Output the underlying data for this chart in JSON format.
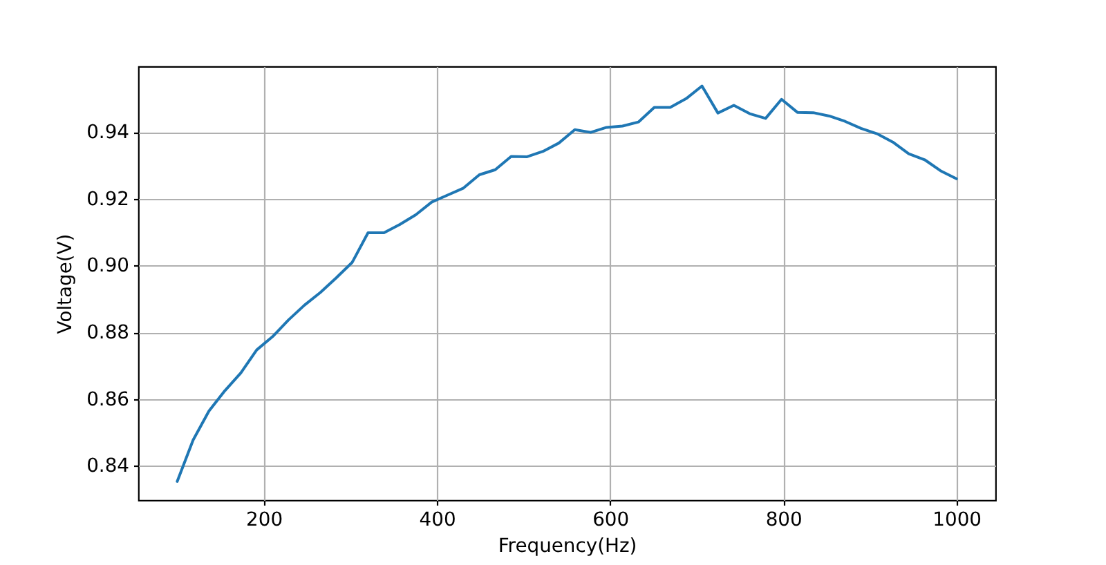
{
  "chart_data": {
    "type": "line",
    "xlabel": "Frequency(Hz)",
    "ylabel": "Voltage(V)",
    "color": "#1f77b4",
    "x": [
      100,
      118.4,
      136.7,
      155.1,
      173.5,
      191.8,
      210.2,
      228.6,
      246.9,
      265.3,
      283.7,
      302.0,
      320.4,
      338.8,
      357.1,
      375.5,
      393.9,
      412.2,
      430.6,
      449.0,
      467.3,
      485.7,
      504.1,
      522.4,
      540.8,
      559.2,
      577.6,
      595.9,
      614.3,
      632.7,
      651.0,
      669.4,
      687.8,
      706.1,
      724.5,
      742.9,
      761.2,
      779.6,
      798.0,
      816.3,
      834.7,
      853.1,
      871.4,
      889.8,
      908.2,
      926.5,
      944.9,
      963.3,
      981.6,
      1000
    ],
    "values": [
      0.8353,
      0.8477,
      0.8564,
      0.8625,
      0.8678,
      0.8747,
      0.8787,
      0.8837,
      0.8881,
      0.8919,
      0.8963,
      0.9009,
      0.9098,
      0.9098,
      0.9123,
      0.9152,
      0.919,
      0.9211,
      0.9232,
      0.9272,
      0.9287,
      0.9327,
      0.9326,
      0.9342,
      0.9367,
      0.9407,
      0.9399,
      0.9414,
      0.9418,
      0.943,
      0.9474,
      0.9474,
      0.95,
      0.9538,
      0.9457,
      0.948,
      0.9455,
      0.9441,
      0.9498,
      0.9459,
      0.9458,
      0.9448,
      0.9432,
      0.9411,
      0.9395,
      0.937,
      0.9335,
      0.9317,
      0.9284,
      0.926
    ],
    "xlim": [
      55,
      1045
    ],
    "ylim": [
      0.8297,
      0.9597
    ],
    "xticks": [
      200,
      400,
      600,
      800,
      1000
    ],
    "yticks": [
      0.84,
      0.86,
      0.88,
      {
        "value": 0.9,
        "label": "0.90"
      },
      0.92,
      0.94
    ],
    "grid": true
  }
}
